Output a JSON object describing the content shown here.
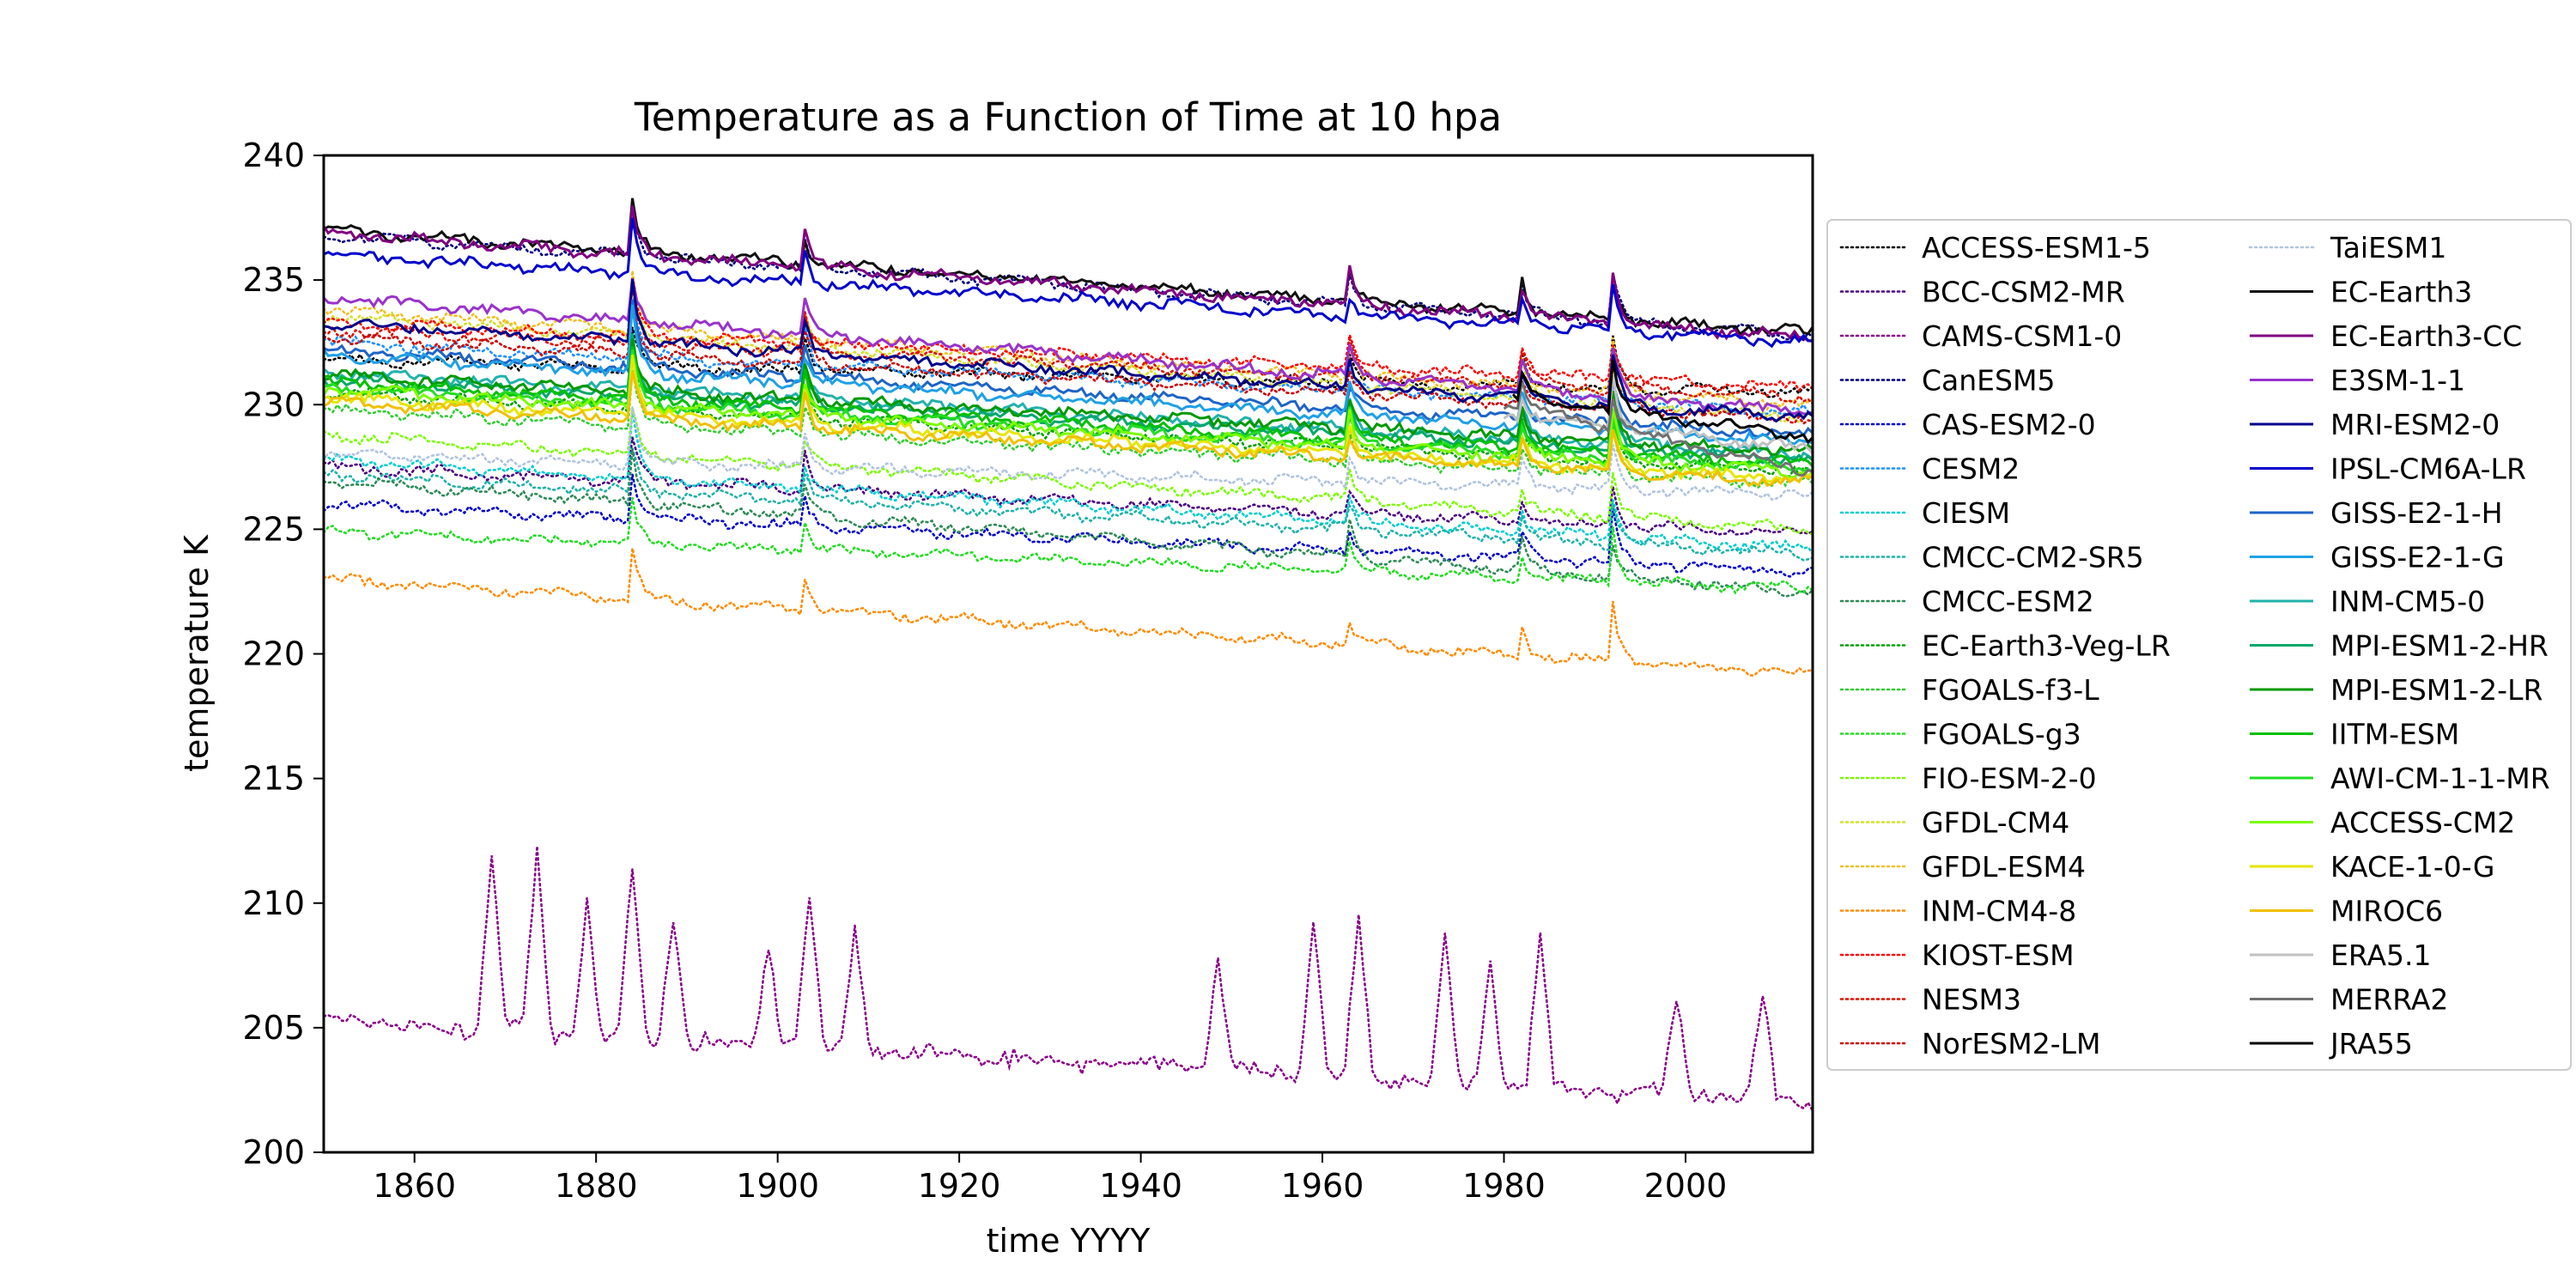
{
  "chart_data": {
    "type": "line",
    "title": "Temperature as a Function of Time at 10 hpa",
    "xlabel": "time YYYY",
    "ylabel": "temperature K",
    "xlim": [
      1850,
      2014
    ],
    "ylim": [
      200,
      240
    ],
    "xticks": [
      1860,
      1880,
      1900,
      1920,
      1940,
      1960,
      1980,
      2000
    ],
    "yticks": [
      200,
      205,
      210,
      215,
      220,
      225,
      230,
      235,
      240
    ],
    "grid": false,
    "legend_position": "right, outside plot area",
    "events": [
      {
        "year": 1884,
        "size": 1.0
      },
      {
        "year": 1903,
        "size": 0.55
      },
      {
        "year": 1963,
        "size": 0.5
      },
      {
        "year": 1982,
        "size": 0.5
      },
      {
        "year": 1992,
        "size": 0.8
      }
    ],
    "series": [
      {
        "name": "ACCESS-ESM1-5",
        "style": "dotted",
        "color": "#000000",
        "start": 1850,
        "y0": 231.8,
        "y1": 230.5
      },
      {
        "name": "BCC-CSM2-MR",
        "style": "dotted",
        "color": "#4b0082",
        "start": 1850,
        "y0": 227.5,
        "y1": 224.8
      },
      {
        "name": "CAMS-CSM1-0",
        "style": "dotted",
        "color": "#8b008b",
        "start": 1850,
        "y0": 205.3,
        "y1": 202.0,
        "special": "cams"
      },
      {
        "name": "CanESM5",
        "style": "dotted",
        "color": "#000080",
        "start": 1850,
        "y0": 236.8,
        "y1": 232.8
      },
      {
        "name": "CAS-ESM2-0",
        "style": "dotted",
        "color": "#0000cd",
        "start": 1850,
        "y0": 226.0,
        "y1": 223.3
      },
      {
        "name": "CESM2",
        "style": "dotted",
        "color": "#1e90ff",
        "start": 1850,
        "y0": 232.5,
        "y1": 229.7
      },
      {
        "name": "CIESM",
        "style": "dotted",
        "color": "#00ced1",
        "start": 1850,
        "y0": 227.8,
        "y1": 224.2
      },
      {
        "name": "CMCC-CM2-SR5",
        "style": "dotted",
        "color": "#20b2aa",
        "start": 1850,
        "y0": 227.2,
        "y1": 224.0
      },
      {
        "name": "CMCC-ESM2",
        "style": "dotted",
        "color": "#2e8b57",
        "start": 1850,
        "y0": 227.0,
        "y1": 222.5
      },
      {
        "name": "EC-Earth3-Veg-LR",
        "style": "dotted",
        "color": "#00a000",
        "start": 1850,
        "y0": 230.5,
        "y1": 227.3
      },
      {
        "name": "FGOALS-f3-L",
        "style": "dotted",
        "color": "#32cd32",
        "start": 1850,
        "y0": 229.8,
        "y1": 226.8
      },
      {
        "name": "FGOALS-g3",
        "style": "dotted",
        "color": "#22dd22",
        "start": 1850,
        "y0": 224.9,
        "y1": 222.6
      },
      {
        "name": "FIO-ESM-2-0",
        "style": "dotted",
        "color": "#7cfc00",
        "start": 1850,
        "y0": 228.8,
        "y1": 225.0
      },
      {
        "name": "GFDL-CM4",
        "style": "dotted",
        "color": "#d4e02a",
        "start": 1850,
        "y0": 233.6,
        "y1": 229.5
      },
      {
        "name": "GFDL-ESM4",
        "style": "dotted",
        "color": "#f0c020",
        "start": 1850,
        "y0": 233.8,
        "y1": 230.0
      },
      {
        "name": "INM-CM4-8",
        "style": "dotted",
        "color": "#ff8c00",
        "start": 1850,
        "y0": 223.0,
        "y1": 219.2
      },
      {
        "name": "KIOST-ESM",
        "style": "dotted",
        "color": "#ff0000",
        "start": 1850,
        "y0": 233.3,
        "y1": 230.7
      },
      {
        "name": "NESM3",
        "style": "dotted",
        "color": "#dd1100",
        "start": 1850,
        "y0": 233.0,
        "y1": 230.3
      },
      {
        "name": "NorESM2-LM",
        "style": "dotted",
        "color": "#cc0000",
        "start": 1850,
        "y0": 232.7,
        "y1": 229.4
      },
      {
        "name": "TaiESM1",
        "style": "dotted",
        "color": "#b0c4de",
        "start": 1850,
        "y0": 228.0,
        "y1": 226.4
      },
      {
        "name": "EC-Earth3",
        "style": "solid",
        "color": "#111111",
        "start": 1850,
        "y0": 237.0,
        "y1": 232.9
      },
      {
        "name": "EC-Earth3-CC",
        "style": "solid",
        "color": "#800080",
        "start": 1850,
        "y0": 236.9,
        "y1": 232.7
      },
      {
        "name": "E3SM-1-1",
        "style": "solid",
        "color": "#9932cc",
        "start": 1850,
        "y0": 234.3,
        "y1": 229.7
      },
      {
        "name": "MRI-ESM2-0",
        "style": "solid",
        "color": "#00008b",
        "start": 1850,
        "y0": 233.3,
        "y1": 229.5
      },
      {
        "name": "IPSL-CM6A-LR",
        "style": "solid",
        "color": "#0000cd",
        "start": 1850,
        "y0": 236.0,
        "y1": 232.5
      },
      {
        "name": "GISS-E2-1-H",
        "style": "solid",
        "color": "#1e64c8",
        "start": 1850,
        "y0": 232.2,
        "y1": 228.8
      },
      {
        "name": "GISS-E2-1-G",
        "style": "solid",
        "color": "#1ea0e6",
        "start": 1850,
        "y0": 232.0,
        "y1": 228.5
      },
      {
        "name": "INM-CM5-0",
        "style": "solid",
        "color": "#20b2aa",
        "start": 1850,
        "y0": 231.3,
        "y1": 228.0
      },
      {
        "name": "MPI-ESM1-2-HR",
        "style": "solid",
        "color": "#00a86b",
        "start": 1850,
        "y0": 231.0,
        "y1": 227.8
      },
      {
        "name": "MPI-ESM1-2-LR",
        "style": "solid",
        "color": "#009900",
        "start": 1850,
        "y0": 231.2,
        "y1": 228.1
      },
      {
        "name": "IITM-ESM",
        "style": "solid",
        "color": "#00c000",
        "start": 1850,
        "y0": 230.9,
        "y1": 227.6
      },
      {
        "name": "AWI-CM-1-1-MR",
        "style": "solid",
        "color": "#22dd22",
        "start": 1850,
        "y0": 230.7,
        "y1": 227.4
      },
      {
        "name": "ACCESS-CM2",
        "style": "solid",
        "color": "#7cfc00",
        "start": 1850,
        "y0": 230.6,
        "y1": 227.3
      },
      {
        "name": "KACE-1-0-G",
        "style": "solid",
        "color": "#e6e600",
        "start": 1850,
        "y0": 230.3,
        "y1": 227.0
      },
      {
        "name": "MIROC6",
        "style": "solid",
        "color": "#f0c000",
        "start": 1850,
        "y0": 230.1,
        "y1": 226.9
      },
      {
        "name": "ERA5.1",
        "style": "solid",
        "color": "#c0c0c0",
        "start": 1980,
        "y0": 229.6,
        "y1": 228.2
      },
      {
        "name": "MERRA2",
        "style": "solid",
        "color": "#707070",
        "start": 1980,
        "y0": 230.0,
        "y1": 227.3
      },
      {
        "name": "JRA55",
        "style": "solid",
        "color": "#000000",
        "start": 1981,
        "y0": 230.3,
        "y1": 228.7
      }
    ]
  }
}
